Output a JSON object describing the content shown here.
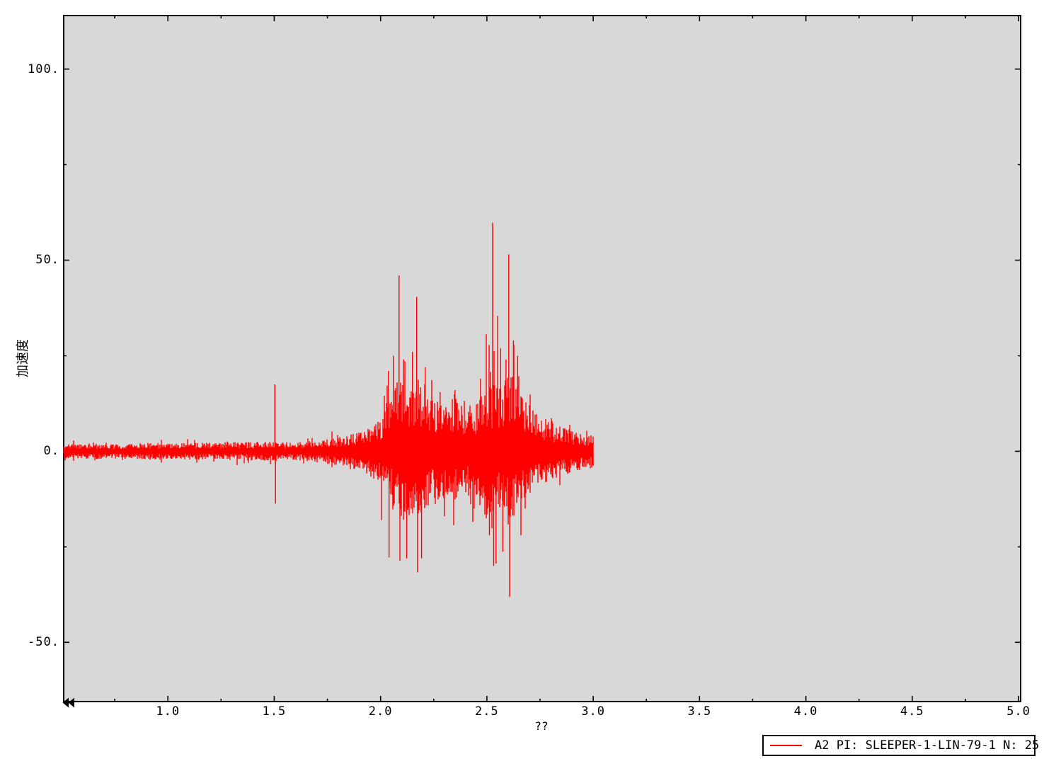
{
  "legend": {
    "label": "A2 PI: SLEEPER-1-LIN-79-1 N: 25",
    "line_color": "#ff0000"
  },
  "chart_data": {
    "type": "line",
    "subtype": "seismic-acceleration-waveform",
    "title": "",
    "xlabel": "??",
    "ylabel": "加速度",
    "series_name": "A2 PI: SLEEPER-1-LIN-79-1 N: 25",
    "line_color": "#ff0000",
    "plot_background": "#d8d8d8",
    "axis_color": "#000000",
    "grid": false,
    "legend_position": "bottom-right-outside",
    "xlim": [
      0.51,
      5.01
    ],
    "ylim": [
      -65.5,
      114.0
    ],
    "x_ticks": [
      {
        "v": 1.0,
        "label": "1.0"
      },
      {
        "v": 1.5,
        "label": "1.5"
      },
      {
        "v": 2.0,
        "label": "2.0"
      },
      {
        "v": 2.5,
        "label": "2.5"
      },
      {
        "v": 3.0,
        "label": "3.0"
      },
      {
        "v": 3.5,
        "label": "3.5"
      },
      {
        "v": 4.0,
        "label": "4.0"
      },
      {
        "v": 4.5,
        "label": "4.5"
      },
      {
        "v": 5.0,
        "label": "5.0"
      }
    ],
    "x_minor_ticks": [
      0.75,
      1.25,
      1.75,
      2.25,
      2.75,
      3.25,
      3.75,
      4.25,
      4.75
    ],
    "y_ticks": [
      {
        "v": 100,
        "label": "100."
      },
      {
        "v": 50,
        "label": "50."
      },
      {
        "v": 0,
        "label": "0."
      },
      {
        "v": -50,
        "label": "-50."
      }
    ],
    "y_minor_ticks": [
      75,
      25,
      -25
    ],
    "signal": {
      "t_range": [
        0.51,
        3.0
      ],
      "baseline": 0,
      "envelope": [
        [
          0.51,
          1.7
        ],
        [
          0.65,
          1.9
        ],
        [
          0.78,
          1.5
        ],
        [
          0.92,
          2.1
        ],
        [
          1.05,
          1.9
        ],
        [
          1.2,
          2.1
        ],
        [
          1.35,
          2.2
        ],
        [
          1.47,
          2.3
        ],
        [
          1.58,
          2.0
        ],
        [
          1.7,
          2.7
        ],
        [
          1.82,
          3.5
        ],
        [
          1.92,
          5.0
        ],
        [
          2.0,
          8.0
        ],
        [
          2.05,
          13.0
        ],
        [
          2.09,
          18.0
        ],
        [
          2.13,
          15.0
        ],
        [
          2.17,
          18.0
        ],
        [
          2.22,
          13.0
        ],
        [
          2.28,
          11.5
        ],
        [
          2.34,
          12.5
        ],
        [
          2.4,
          10.5
        ],
        [
          2.46,
          13.0
        ],
        [
          2.51,
          17.0
        ],
        [
          2.56,
          15.0
        ],
        [
          2.61,
          19.0
        ],
        [
          2.65,
          15.0
        ],
        [
          2.69,
          12.0
        ],
        [
          2.74,
          9.0
        ],
        [
          2.8,
          7.0
        ],
        [
          2.87,
          5.5
        ],
        [
          2.94,
          4.5
        ],
        [
          3.0,
          4.0
        ]
      ],
      "spikes": [
        [
          1.503,
          17.5
        ],
        [
          1.506,
          -13.7
        ],
        [
          2.005,
          -18.0
        ],
        [
          2.037,
          21.0
        ],
        [
          2.04,
          -27.8
        ],
        [
          2.06,
          25.0
        ],
        [
          2.087,
          46.0
        ],
        [
          2.091,
          -28.7
        ],
        [
          2.108,
          24.0
        ],
        [
          2.123,
          -28.0
        ],
        [
          2.15,
          26.0
        ],
        [
          2.17,
          40.4
        ],
        [
          2.174,
          -31.7
        ],
        [
          2.193,
          -28.0
        ],
        [
          2.21,
          22.0
        ],
        [
          2.28,
          15.5
        ],
        [
          2.3,
          -17.0
        ],
        [
          2.35,
          16.0
        ],
        [
          2.44,
          -15.0
        ],
        [
          2.47,
          19.0
        ],
        [
          2.497,
          30.6
        ],
        [
          2.512,
          -22.0
        ],
        [
          2.527,
          59.8
        ],
        [
          2.532,
          -30.0
        ],
        [
          2.543,
          -29.4
        ],
        [
          2.551,
          35.4
        ],
        [
          2.565,
          27.0
        ],
        [
          2.575,
          -26.3
        ],
        [
          2.59,
          24.0
        ],
        [
          2.603,
          51.5
        ],
        [
          2.607,
          -38.1
        ],
        [
          2.625,
          29.0
        ],
        [
          2.645,
          25.0
        ],
        [
          2.66,
          -22.0
        ],
        [
          2.68,
          -15.0
        ]
      ],
      "max_value": 59.8,
      "min_value": -38.1
    },
    "scroll_indicator": "left-double-arrow"
  }
}
